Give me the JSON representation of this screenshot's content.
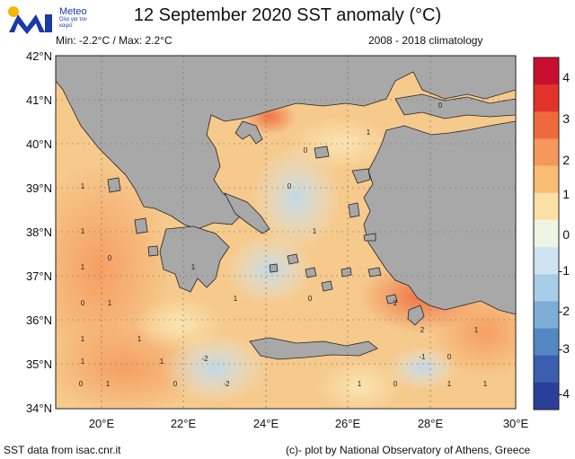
{
  "header": {
    "title": "12 September 2020 SST anomaly (°C)",
    "minmax": "Min: -2.2°C / Max: 2.2°C",
    "climatology": "2008 - 2018 climatology"
  },
  "logo": {
    "name": "Meteo",
    "tagline": "Όλα για τον καιρό"
  },
  "footer": {
    "source": "SST data from isac.cnr.it",
    "credit": "(c)- plot by National Observatory of Athens, Greece"
  },
  "map": {
    "lat_labels": [
      "42°N",
      "41°N",
      "40°N",
      "39°N",
      "38°N",
      "37°N",
      "36°N",
      "35°N",
      "34°N"
    ],
    "lon_labels": [
      "20°E",
      "22°E",
      "24°E",
      "26°E",
      "28°E",
      "30°E"
    ],
    "land_color": "#a8a8a8",
    "sea_color": "#f6c98c"
  },
  "colorbar": {
    "labels": [
      "4",
      "3",
      "2",
      "1",
      "0",
      "-1",
      "-2",
      "-3",
      "-4"
    ],
    "colors": [
      "#c8102e",
      "#e0332a",
      "#ee6a3d",
      "#f6975b",
      "#f9bc73",
      "#fbe0a6",
      "#eef4e4",
      "#cfe4f0",
      "#a8cde6",
      "#7eaed6",
      "#5486c2",
      "#3a5faf",
      "#2a3f99"
    ]
  },
  "anomaly_labels": [
    {
      "v": "1"
    },
    {
      "v": "1"
    },
    {
      "v": "1"
    },
    {
      "v": "0"
    },
    {
      "v": "1"
    },
    {
      "v": "1"
    },
    {
      "v": "0"
    },
    {
      "v": "1"
    },
    {
      "v": "0"
    },
    {
      "v": "1"
    },
    {
      "v": "1"
    },
    {
      "v": "1"
    },
    {
      "v": "0"
    },
    {
      "v": "1"
    },
    {
      "v": "2"
    },
    {
      "v": "1"
    },
    {
      "v": "0"
    },
    {
      "v": "-2"
    },
    {
      "v": "-2"
    },
    {
      "v": "0"
    },
    {
      "v": "1"
    },
    {
      "v": "0"
    },
    {
      "v": "-1"
    },
    {
      "v": "0"
    },
    {
      "v": "1"
    },
    {
      "v": "1"
    },
    {
      "v": "0"
    },
    {
      "v": "1"
    },
    {
      "v": "2"
    },
    {
      "v": "1"
    },
    {
      "v": "0"
    },
    {
      "v": "1"
    }
  ]
}
